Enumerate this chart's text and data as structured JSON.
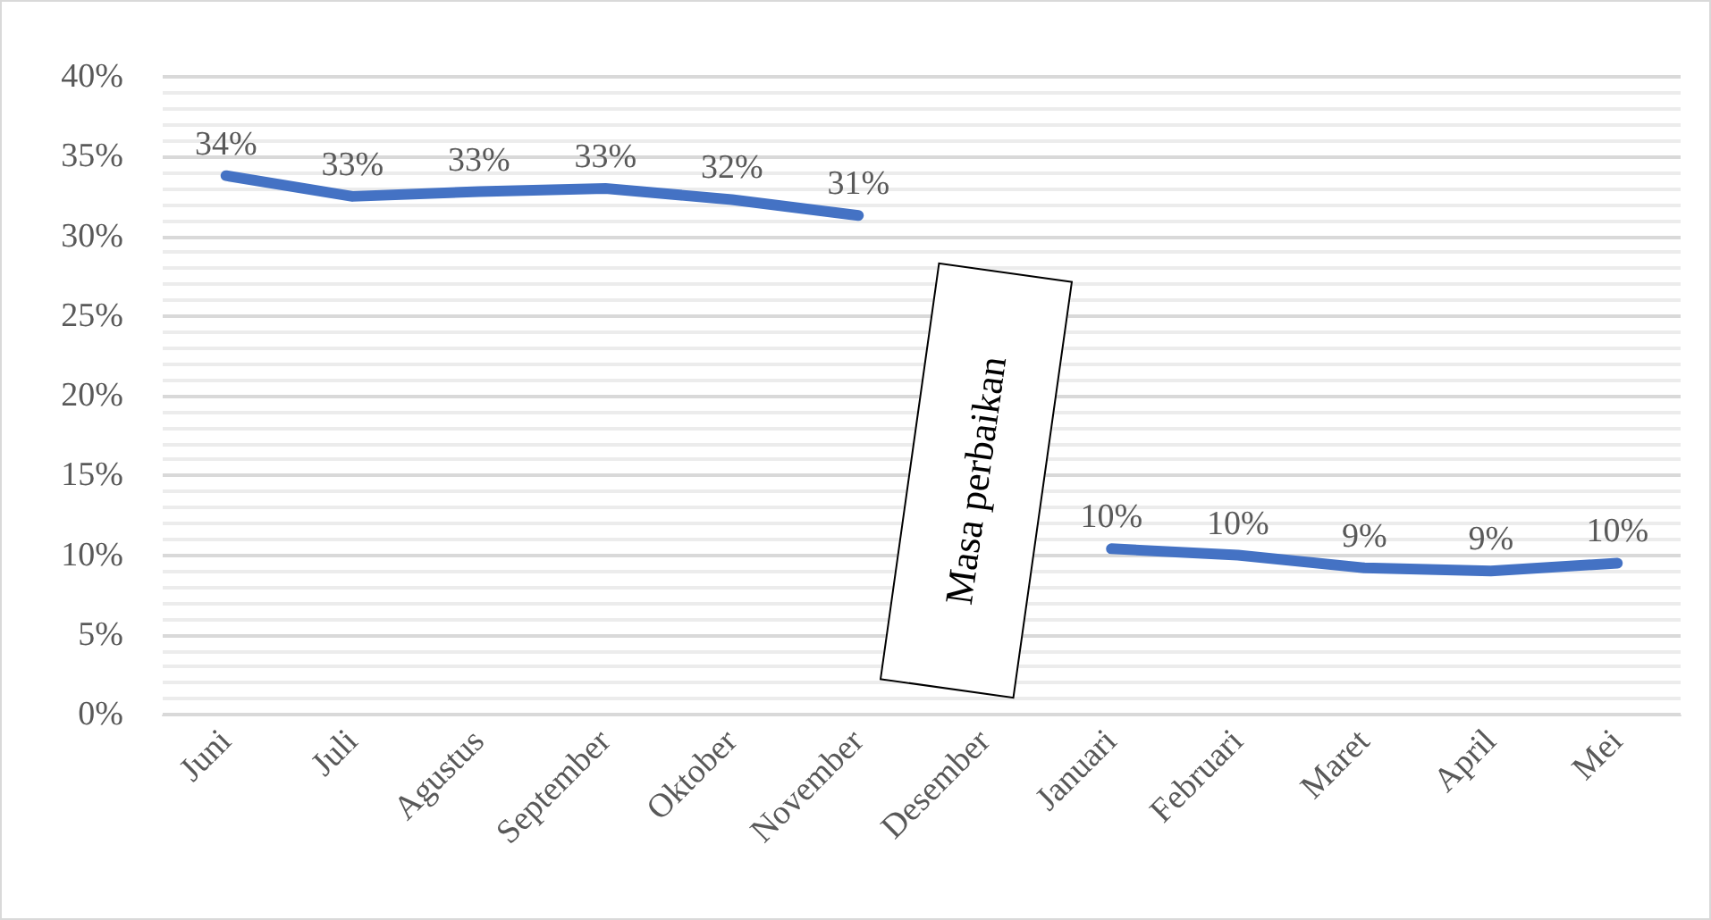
{
  "chart_data": {
    "type": "line",
    "categories": [
      "Juni",
      "Juli",
      "Agustus",
      "September",
      "Oktober",
      "November",
      "Desember",
      "Januari",
      "Februari",
      "Maret",
      "April",
      "Mei"
    ],
    "series": [
      {
        "color": "#4472c4",
        "values": [
          33.8,
          32.5,
          32.8,
          33.0,
          32.3,
          31.3,
          null,
          10.4,
          10.0,
          9.2,
          9.0,
          9.5
        ],
        "value_labels": [
          "34%",
          "33%",
          "33%",
          "33%",
          "32%",
          "31%",
          null,
          "10%",
          "10%",
          "9%",
          "9%",
          "10%"
        ]
      }
    ],
    "ylim": [
      0,
      40
    ],
    "yticks": [
      {
        "value": 0,
        "label": "0%"
      },
      {
        "value": 5,
        "label": "5%"
      },
      {
        "value": 10,
        "label": "10%"
      },
      {
        "value": 15,
        "label": "15%"
      },
      {
        "value": 20,
        "label": "20%"
      },
      {
        "value": 25,
        "label": "25%"
      },
      {
        "value": 30,
        "label": "30%"
      },
      {
        "value": 35,
        "label": "35%"
      },
      {
        "value": 40,
        "label": "40%"
      }
    ],
    "grid": "y",
    "marker": "none",
    "line_style": "solid",
    "annotations": [
      "Masa perbaikan"
    ]
  }
}
